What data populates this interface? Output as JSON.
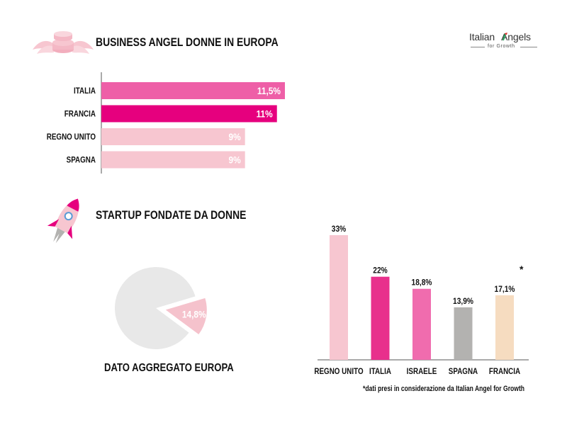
{
  "logo": {
    "main": "Italian   Angels",
    "sub": "for Growth",
    "colors": [
      "#1f9d55",
      "#ffffff",
      "#e03131"
    ]
  },
  "section1": {
    "title": "BUSINESS ANGEL DONNE IN EUROPA",
    "icon": "winged-coins-icon"
  },
  "section2": {
    "title": "STARTUP FONDATE DA DONNE",
    "icon": "rocket-icon"
  },
  "pie_caption": "DATO AGGREGATO EUROPA",
  "asterisk": "*",
  "footnote": "*dati presi in considerazione da Italian Angel for Growth",
  "colors": {
    "pink_medium": "#ee5fa7",
    "magenta": "#e6007e",
    "pink_light": "#f7c6d0",
    "grey": "#b3b2b0",
    "peach": "#f6dcc0",
    "pie_grey": "#e8e8e8",
    "pie_pink": "#f5c2cc"
  },
  "chart_data": [
    {
      "type": "bar",
      "orientation": "horizontal",
      "title": "BUSINESS ANGEL DONNE IN EUROPA",
      "categories": [
        "ITALIA",
        "FRANCIA",
        "REGNO UNITO",
        "SPAGNA"
      ],
      "values": [
        11.5,
        11,
        9,
        9
      ],
      "labels": [
        "11,5%",
        "11%",
        "9%",
        "9%"
      ],
      "colors": [
        "#ee5fa7",
        "#e6007e",
        "#f7c6d0",
        "#f7c6d0"
      ],
      "xlim": [
        0,
        11.5
      ],
      "grid": false
    },
    {
      "type": "pie",
      "title": "DATO AGGREGATO EUROPA",
      "slices": [
        {
          "value": 14.8,
          "label": "14,8%",
          "color": "#f5c2cc",
          "exploded": true
        },
        {
          "value": 85.2,
          "label": "",
          "color": "#e8e8e8",
          "exploded": false
        }
      ]
    },
    {
      "type": "bar",
      "orientation": "vertical",
      "title": "STARTUP FONDATE DA DONNE",
      "categories": [
        "REGNO UNITO",
        "ITALIA",
        "ISRAELE",
        "SPAGNA",
        "FRANCIA"
      ],
      "values": [
        33,
        22,
        18.8,
        13.9,
        17.1
      ],
      "labels": [
        "33%",
        "22%",
        "18,8%",
        "13,9%",
        "17,1%"
      ],
      "colors": [
        "#f7c6d0",
        "#e8308c",
        "#f06cae",
        "#b3b2b0",
        "#f6dcc0"
      ],
      "ylim": [
        0,
        33
      ],
      "grid": false
    }
  ]
}
